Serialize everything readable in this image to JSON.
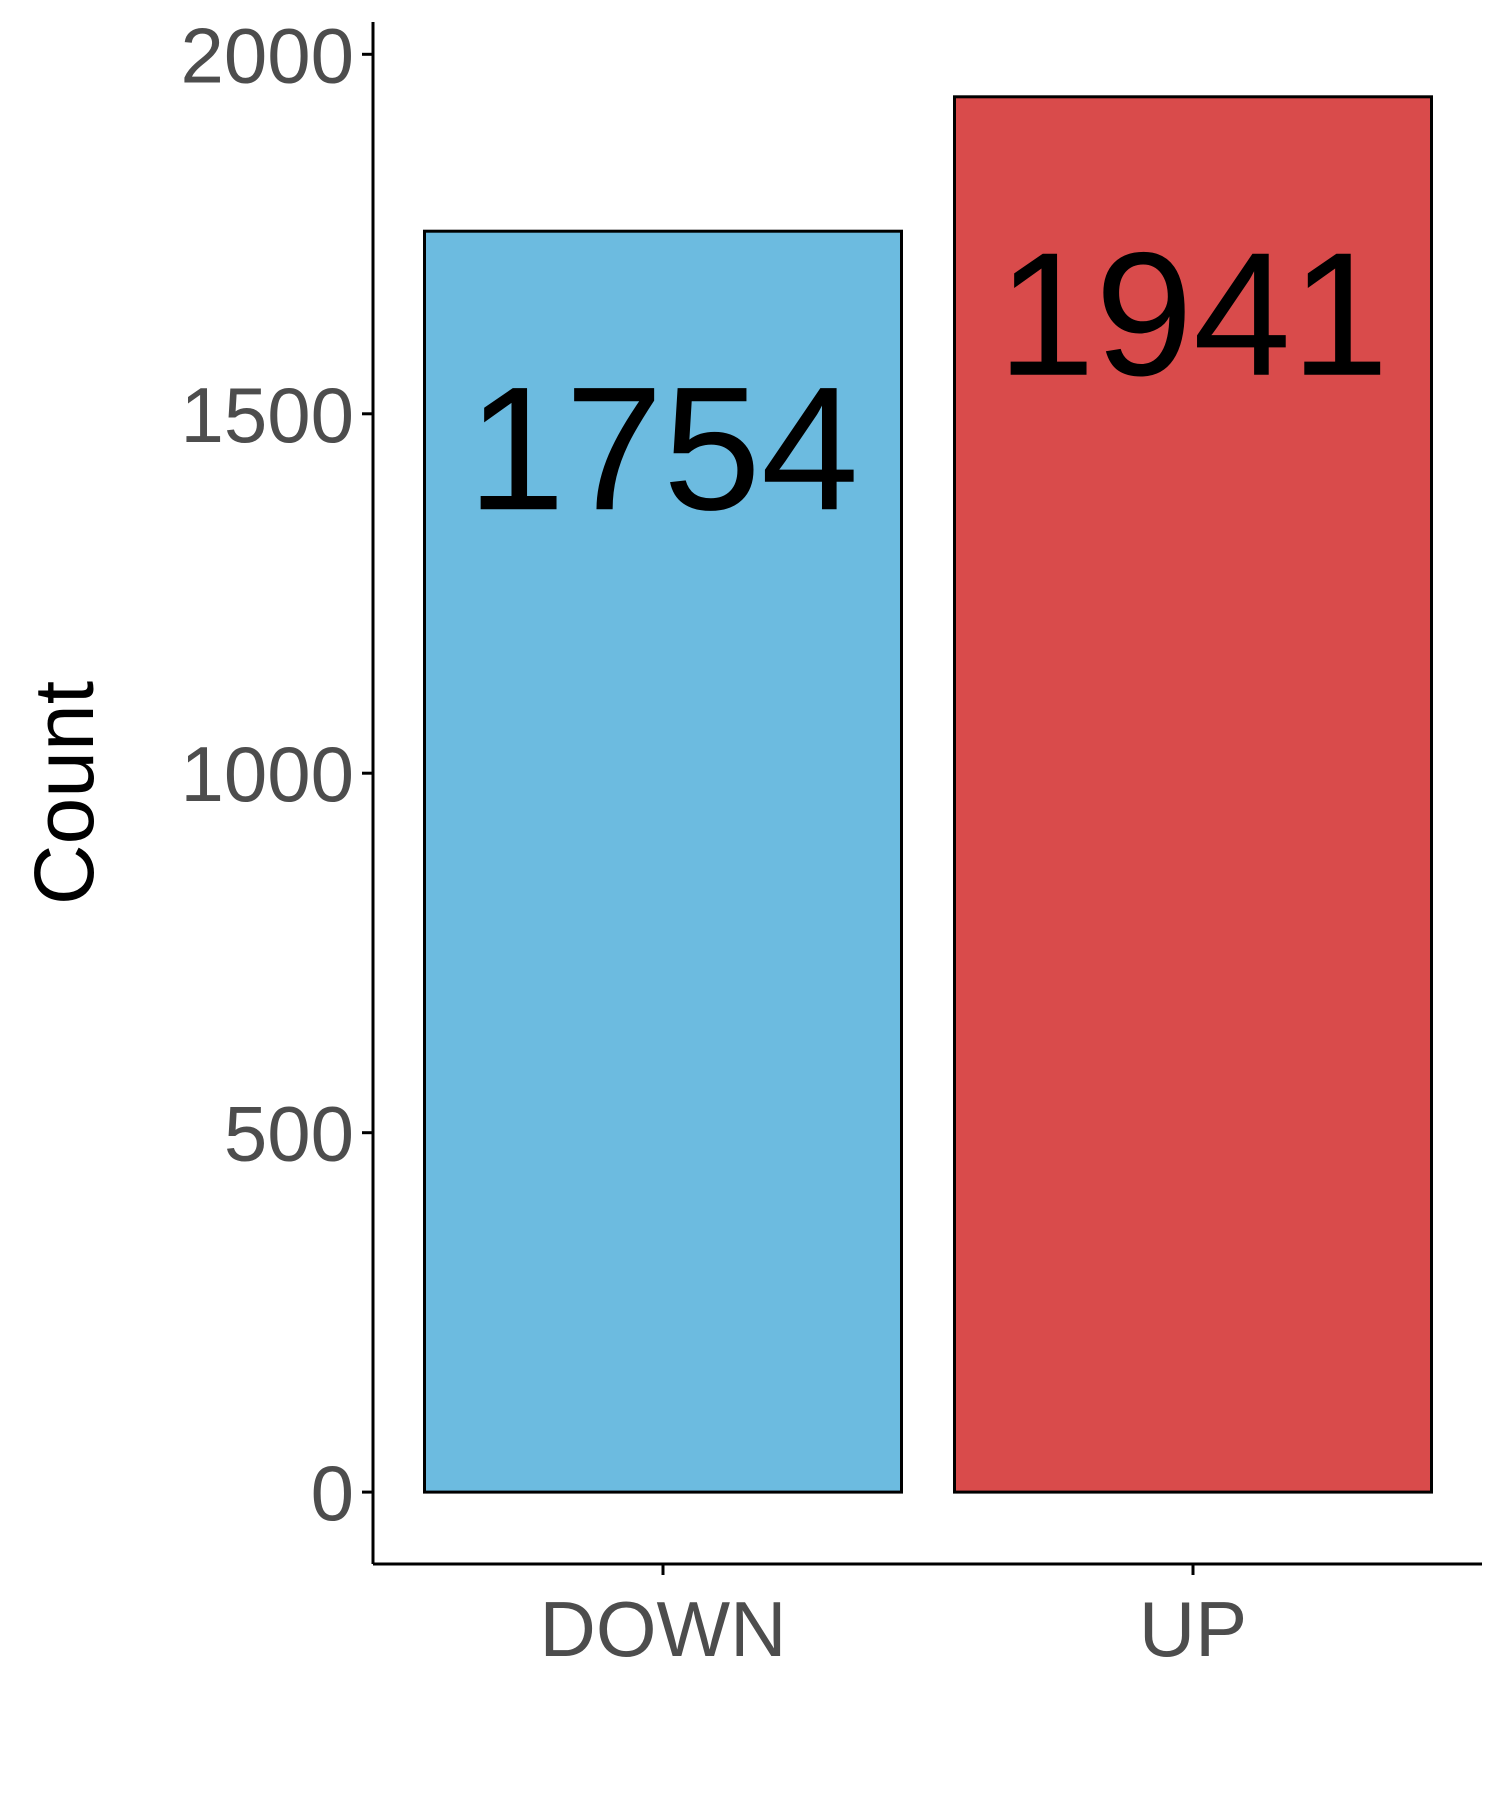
{
  "chart_data": {
    "type": "bar",
    "categories": [
      "DOWN",
      "UP"
    ],
    "values": [
      1754,
      1941
    ],
    "data_labels": [
      "1754",
      "1941"
    ],
    "bar_colors": [
      "#6cbbe0",
      "#d94b4b"
    ],
    "bar_outline_color": "#000000",
    "title": "",
    "xlabel": "",
    "ylabel": "Count",
    "ylim": [
      -100,
      2045
    ],
    "yticks": [
      0,
      500,
      1000,
      1500,
      2000
    ],
    "ytick_labels": [
      "0",
      "500",
      "1000",
      "1500",
      "2000"
    ],
    "grid": false,
    "legend": "none"
  }
}
